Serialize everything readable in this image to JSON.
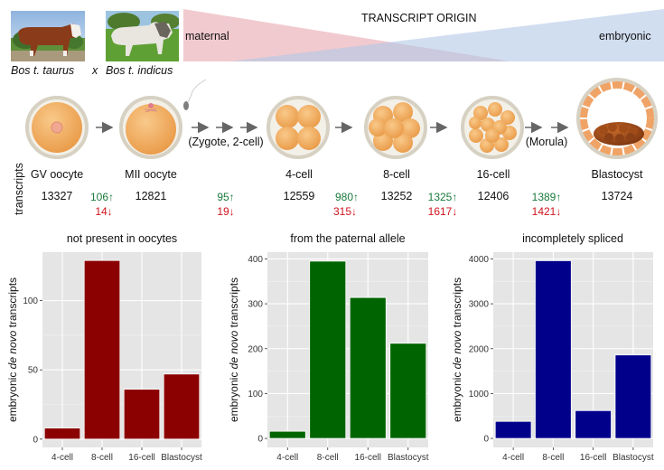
{
  "header": {
    "species": [
      {
        "name": "Bos t. taurus",
        "icon": "hereford-cow-photo"
      },
      {
        "name": "Bos t. indicus",
        "icon": "brahman-cow-photo"
      }
    ],
    "cross_symbol": "x",
    "transcript_origin": {
      "title": "TRANSCRIPT ORIGIN",
      "left_label": "maternal",
      "right_label": "embryonic",
      "maternal_color": "#f0c8cc",
      "embryonic_color": "#c9d7ec"
    }
  },
  "timeline": {
    "row_label": "transcripts",
    "stages": [
      {
        "label": "GV oocyte",
        "count": "13327",
        "icon": "gv-oocyte-icon"
      },
      {
        "label": "MII oocyte",
        "count": "12821",
        "icon": "mii-oocyte-icon"
      },
      {
        "label": "4-cell",
        "count": "12559",
        "icon": "four-cell-embryo-icon"
      },
      {
        "label": "8-cell",
        "count": "13252",
        "icon": "eight-cell-embryo-icon"
      },
      {
        "label": "16-cell",
        "count": "12406",
        "icon": "sixteen-cell-embryo-icon"
      },
      {
        "label": "Blastocyst",
        "count": "13724",
        "icon": "blastocyst-icon"
      }
    ],
    "transitions": [
      {
        "up": "106↑",
        "down": "14↓"
      },
      {
        "up": "95↑",
        "down": "19↓"
      },
      {
        "up": "980↑",
        "down": "315↓"
      },
      {
        "up": "1325↑",
        "down": "1617↓"
      },
      {
        "up": "1389↑",
        "down": "1421↓"
      }
    ],
    "intermediate_notes": [
      "(Zygote, 2-cell)",
      "(Morula)"
    ],
    "up_color": "#1a7a3c",
    "down_color": "#d0141e"
  },
  "chart_data": [
    {
      "type": "bar",
      "title": "not present in oocytes",
      "xlabel": "",
      "ylabel": "embryonic de novo transcripts",
      "categories": [
        "4-cell",
        "8-cell",
        "16-cell",
        "Blastocyst"
      ],
      "values": [
        8,
        129,
        36,
        47
      ],
      "yticks": [
        0,
        50,
        100
      ],
      "ylim": [
        -6,
        135
      ],
      "color": "#8b0000",
      "grid": true
    },
    {
      "type": "bar",
      "title": "from the paternal allele",
      "xlabel": "",
      "ylabel": "embryonic de novo transcripts",
      "categories": [
        "4-cell",
        "8-cell",
        "16-cell",
        "Blastocyst"
      ],
      "values": [
        16,
        395,
        314,
        212
      ],
      "yticks": [
        0,
        100,
        200,
        300,
        400
      ],
      "ylim": [
        -20,
        415
      ],
      "color": "#006400",
      "grid": true
    },
    {
      "type": "bar",
      "title": "incompletely spliced",
      "xlabel": "",
      "ylabel": "embryonic de novo transcripts",
      "categories": [
        "4-cell",
        "8-cell",
        "16-cell",
        "Blastocyst"
      ],
      "values": [
        380,
        3960,
        620,
        1860
      ],
      "yticks": [
        0,
        1000,
        2000,
        3000,
        4000
      ],
      "ylim": [
        -200,
        4150
      ],
      "color": "#00008b",
      "grid": true
    }
  ]
}
